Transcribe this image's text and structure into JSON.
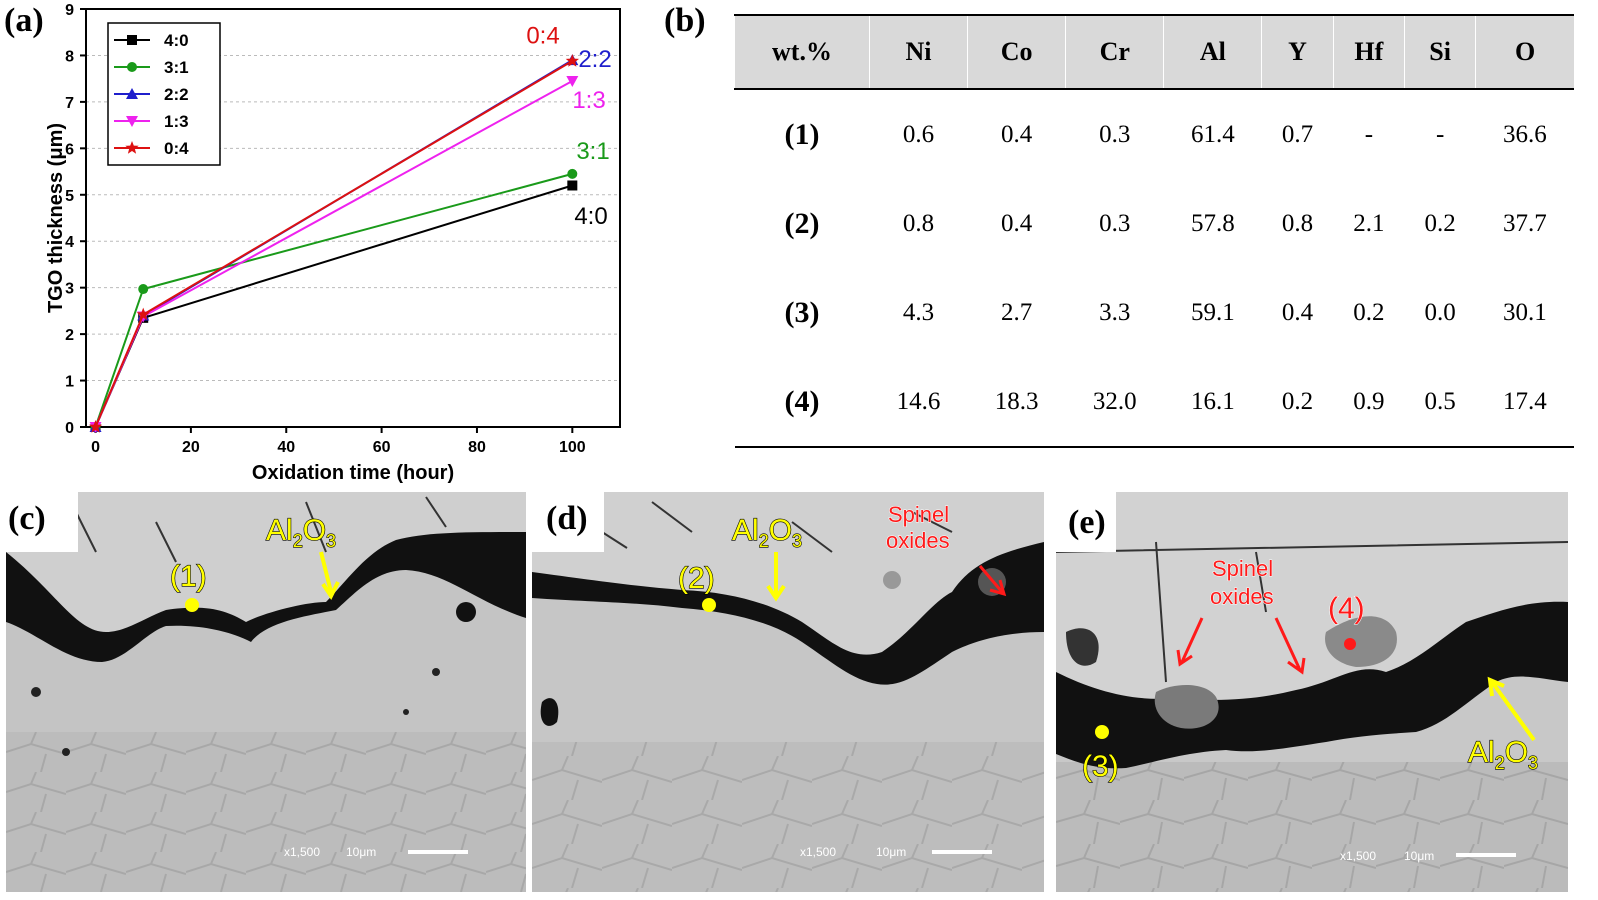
{
  "panels": {
    "a": "(a)",
    "b": "(b)",
    "c": "(c)",
    "d": "(d)",
    "e": "(e)"
  },
  "chart_data": {
    "type": "line",
    "xlabel": "Oxidation time (hour)",
    "ylabel": "TGO thickness (μm)",
    "xlim": [
      -2,
      110
    ],
    "ylim": [
      0,
      9
    ],
    "xticks": [
      0,
      20,
      40,
      60,
      80,
      100
    ],
    "yticks": [
      0,
      1,
      2,
      3,
      4,
      5,
      6,
      7,
      8,
      9
    ],
    "grid": "horizontal dashed",
    "legend_position": "top-left",
    "series": [
      {
        "name": "4:0",
        "color": "#000000",
        "marker": "square",
        "x": [
          0,
          10,
          100
        ],
        "y": [
          0,
          2.35,
          5.2
        ]
      },
      {
        "name": "3:1",
        "color": "#1a9a1a",
        "marker": "circle",
        "x": [
          0,
          10,
          100
        ],
        "y": [
          0,
          2.97,
          5.45
        ]
      },
      {
        "name": "2:2",
        "color": "#1f1fcc",
        "marker": "triangle-up",
        "x": [
          0,
          10,
          100
        ],
        "y": [
          0,
          2.4,
          7.9
        ]
      },
      {
        "name": "1:3",
        "color": "#ee22ee",
        "marker": "triangle-down",
        "x": [
          0,
          10,
          100
        ],
        "y": [
          0,
          2.38,
          7.45
        ]
      },
      {
        "name": "0:4",
        "color": "#dd1111",
        "marker": "star",
        "x": [
          0,
          10,
          100
        ],
        "y": [
          0,
          2.42,
          7.88
        ]
      }
    ],
    "end_labels": [
      {
        "text": "0:4",
        "color": "#dd1111"
      },
      {
        "text": "2:2",
        "color": "#1f1fcc"
      },
      {
        "text": "1:3",
        "color": "#ee22ee"
      },
      {
        "text": "3:1",
        "color": "#1a9a1a"
      },
      {
        "text": "4:0",
        "color": "#000000"
      }
    ]
  },
  "table": {
    "headers": [
      "wt.%",
      "Ni",
      "Co",
      "Cr",
      "Al",
      "Y",
      "Hf",
      "Si",
      "O"
    ],
    "rows": [
      [
        "(1)",
        "0.6",
        "0.4",
        "0.3",
        "61.4",
        "0.7",
        "-",
        "-",
        "36.6"
      ],
      [
        "(2)",
        "0.8",
        "0.4",
        "0.3",
        "57.8",
        "0.8",
        "2.1",
        "0.2",
        "37.7"
      ],
      [
        "(3)",
        "4.3",
        "2.7",
        "3.3",
        "59.1",
        "0.4",
        "0.2",
        "0.0",
        "30.1"
      ],
      [
        "(4)",
        "14.6",
        "18.3",
        "32.0",
        "16.1",
        "0.2",
        "0.9",
        "0.5",
        "17.4"
      ]
    ]
  },
  "micrographs": {
    "c": {
      "point": "(1)",
      "al2o3": {
        "al": "Al",
        "sub2": "2",
        "o": "O",
        "sub3": "3"
      },
      "mag": "x1,500",
      "scale": "10μm"
    },
    "d": {
      "point": "(2)",
      "al2o3": {
        "al": "Al",
        "sub2": "2",
        "o": "O",
        "sub3": "3"
      },
      "spinel1": "Spinel",
      "spinel2": "oxides",
      "mag": "x1,500",
      "scale": "10μm"
    },
    "e": {
      "point3": "(3)",
      "point4": "(4)",
      "al2o3": {
        "al": "Al",
        "sub2": "2",
        "o": "O",
        "sub3": "3"
      },
      "spinel1": "Spinel",
      "spinel2": "oxides",
      "mag": "x1,500",
      "scale": "10μm"
    }
  }
}
